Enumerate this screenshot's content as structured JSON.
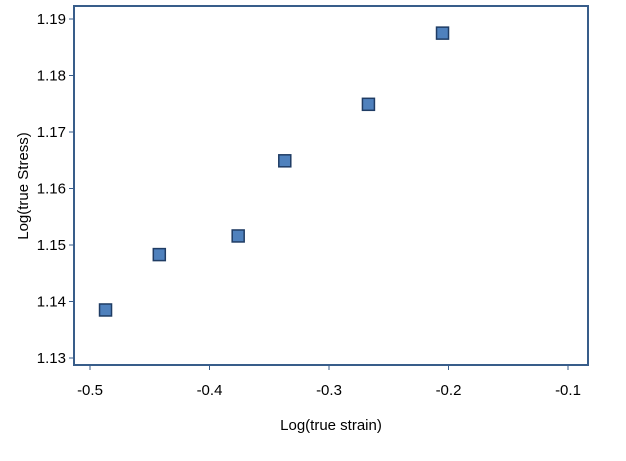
{
  "chart_data": {
    "type": "scatter",
    "title": "",
    "xlabel": "Log(true strain)",
    "ylabel": "Log(true Stress)",
    "xlim": [
      -0.5,
      -0.1
    ],
    "ylim": [
      1.13,
      1.19
    ],
    "xticks": [
      -0.5,
      -0.4,
      -0.3,
      -0.2,
      -0.1
    ],
    "yticks": [
      1.13,
      1.14,
      1.15,
      1.16,
      1.17,
      1.18,
      1.19
    ],
    "xtick_labels": [
      "-0.5",
      "-0.4",
      "-0.3",
      "-0.2",
      "-0.1"
    ],
    "ytick_labels": [
      "1.13",
      "1.14",
      "1.15",
      "1.16",
      "1.17",
      "1.18",
      "1.19"
    ],
    "grid": false,
    "legend": "none",
    "marker": "square",
    "marker_color": "#4f81bd",
    "marker_edge_color": "#1f3c64",
    "frame_color": "#385d8a",
    "series": [
      {
        "x": [
          -0.487,
          -0.442,
          -0.376,
          -0.337,
          -0.267,
          -0.205
        ],
        "y": [
          1.1385,
          1.1483,
          1.1516,
          1.1649,
          1.1749,
          1.1875
        ]
      }
    ]
  }
}
